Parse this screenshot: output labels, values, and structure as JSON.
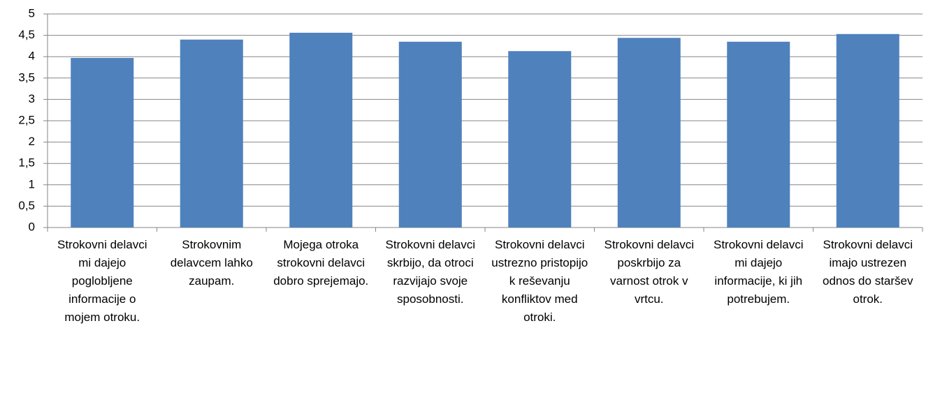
{
  "chart_data": {
    "type": "bar",
    "categories": [
      "Strokovni delavci mi dajejo poglobljene informacije o mojem otroku.",
      "Strokovnim delavcem lahko zaupam.",
      "Mojega otroka strokovni delavci dobro sprejemajo.",
      "Strokovni delavci skrbijo, da otroci razvijajo svoje sposobnosti.",
      "Strokovni delavci ustrezno pristopijo k reševanju konfliktov med otroki.",
      "Strokovni delavci poskrbijo za varnost otrok v vrtcu.",
      "Strokovni delavci mi dajejo informacije, ki jih potrebujem.",
      "Strokovni delavci imajo ustrezen odnos do staršev otrok."
    ],
    "values": [
      3.97,
      4.4,
      4.56,
      4.35,
      4.13,
      4.44,
      4.35,
      4.53
    ],
    "color": "#4f81bd",
    "ylim": [
      0,
      5
    ],
    "yticks": [
      0,
      {
        "value": 0.5,
        "label": "0,5"
      },
      1,
      {
        "value": 1.5,
        "label": "1,5"
      },
      2,
      {
        "value": 2.5,
        "label": "2,5"
      },
      3,
      {
        "value": 3.5,
        "label": "3,5"
      },
      4,
      {
        "value": 4.5,
        "label": "4,5"
      },
      5
    ],
    "grid": true
  }
}
